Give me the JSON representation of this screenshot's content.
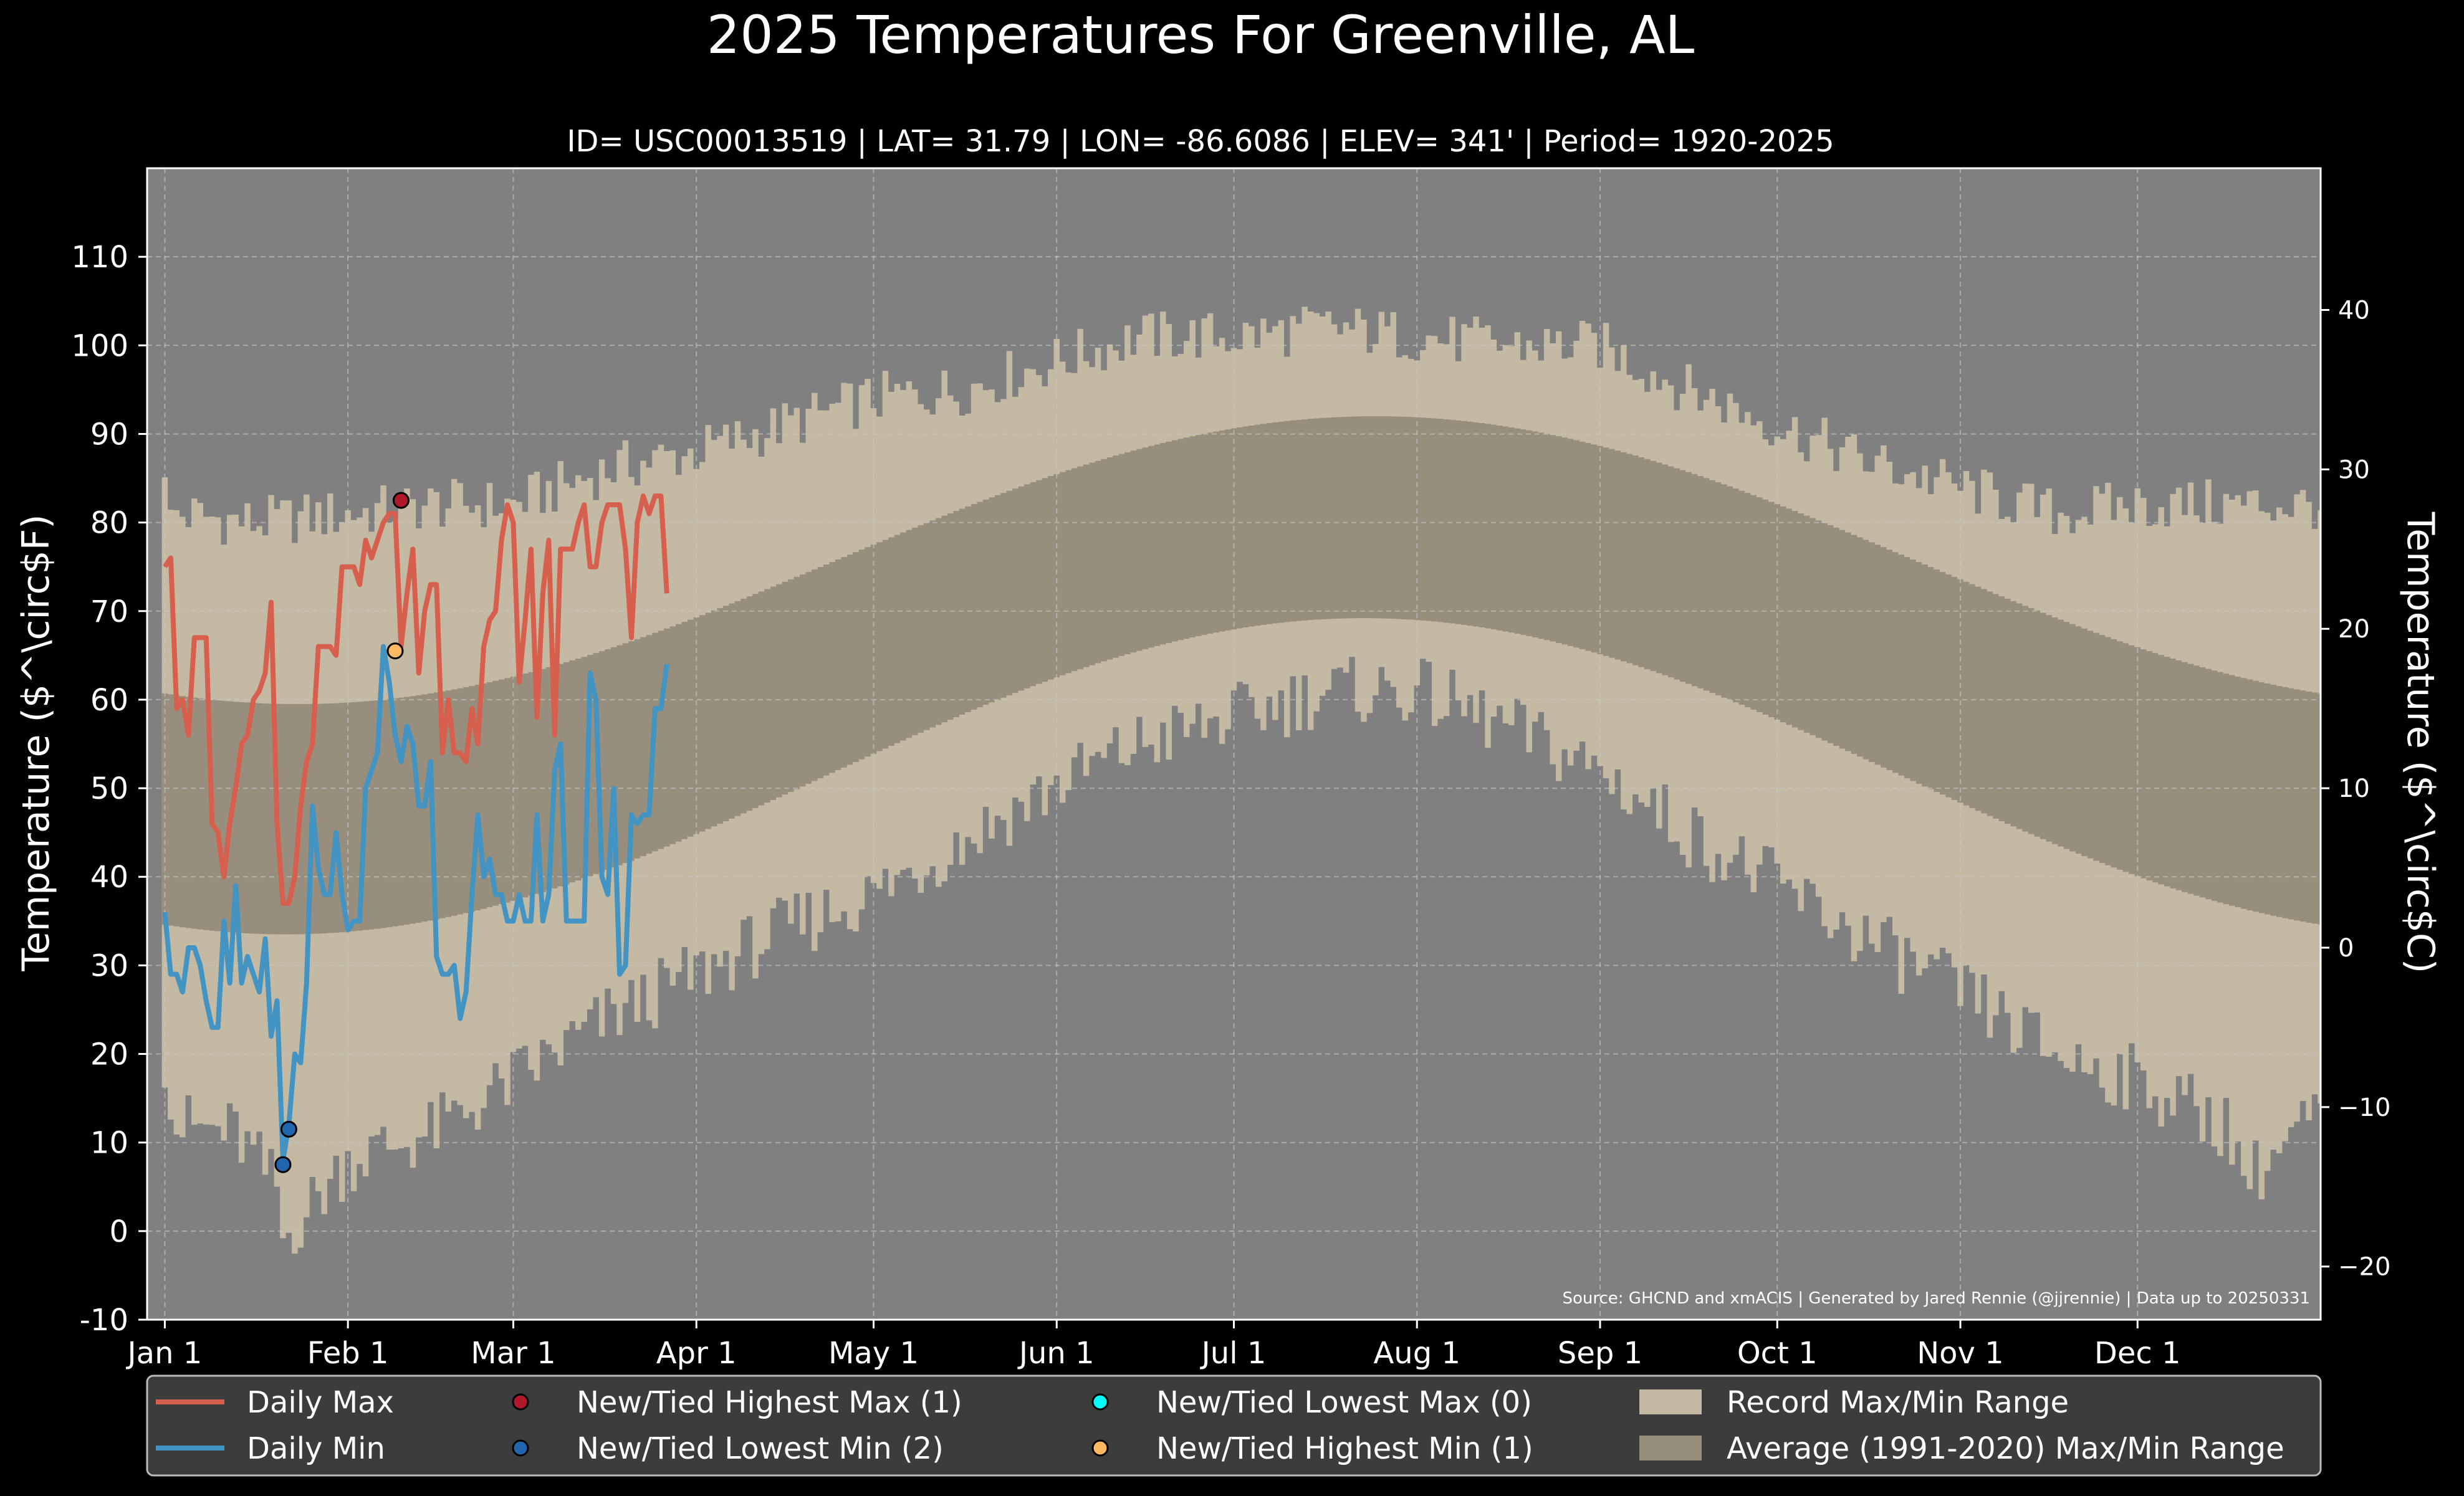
{
  "colors": {
    "background": "#000000",
    "plot_bg": "#808080",
    "record_range": "#c4baa4",
    "average_range": "#978e7e",
    "daily_max": "#d6604d",
    "daily_min": "#4393c3",
    "new_high_max": "#b2182b",
    "new_low_min": "#2166ac",
    "new_low_max": "#00ffff",
    "new_high_min": "#fdb863",
    "text": "#ffffff",
    "grid": "#c8c8c8",
    "legend_bg": "#3c3c3c"
  },
  "chart_data": {
    "type": "line",
    "title": "2025 Temperatures For Greenville, AL",
    "subtitle": "ID= USC00013519 | LAT= 31.79 | LON= -86.6086 | ELEV= 341' | Period= 1920-2025",
    "ylabel_left": "Temperature ($^\\circ$F)",
    "ylabel_right": "Temperature ($^\\circ$C)",
    "ylim": [
      -10,
      120
    ],
    "xlim_days": [
      -3,
      365
    ],
    "y_ticks_left": [
      "-10",
      "0",
      "10",
      "20",
      "30",
      "40",
      "50",
      "60",
      "70",
      "80",
      "90",
      "100",
      "110"
    ],
    "y_ticks_right": [
      "−20",
      "−10",
      "0",
      "10",
      "20",
      "30",
      "40"
    ],
    "x_ticks": [
      "Jan 1",
      "Feb 1",
      "Mar 1",
      "Apr 1",
      "May 1",
      "Jun 1",
      "Jul 1",
      "Aug 1",
      "Sep 1",
      "Oct 1",
      "Nov 1",
      "Dec 1"
    ],
    "grid": true,
    "source": "Source: GHCND and xmACIS | Generated by Jared Rennie (@jjrennie) | Data up to 20250331",
    "average_max_min": {
      "max_low": 59.5,
      "max_low_day": 20,
      "max_high": 92,
      "max_high_day": 205,
      "min_low": 33.5,
      "min_low_day": 20,
      "min_high": 69.2,
      "min_high_day": 203
    },
    "record_max_anchor_days": [
      0,
      1,
      2,
      15,
      31,
      45,
      59,
      75,
      90,
      105,
      120,
      135,
      150,
      165,
      181,
      197,
      212,
      227,
      243,
      258,
      273,
      288,
      304,
      320,
      334,
      349,
      364
    ],
    "record_max_anchor_values": [
      87,
      80,
      81,
      80,
      81,
      82,
      82,
      86,
      88,
      91,
      94,
      95,
      98,
      101,
      101,
      102,
      101,
      100,
      100,
      95,
      91,
      87,
      84,
      81,
      82,
      82,
      82
    ],
    "record_min_anchor_days": [
      0,
      2,
      12,
      19,
      20,
      31,
      45,
      59,
      75,
      90,
      105,
      120,
      135,
      150,
      165,
      181,
      197,
      212,
      227,
      243,
      258,
      273,
      288,
      304,
      320,
      334,
      349,
      353,
      364
    ],
    "record_min_anchor_values": [
      20,
      12,
      11,
      5,
      -1,
      8,
      11,
      17,
      24,
      29,
      34,
      38,
      44,
      50,
      55,
      58,
      61,
      61,
      57,
      52,
      45,
      39,
      33,
      27,
      20,
      17,
      12,
      6,
      13
    ],
    "series": [
      {
        "name": "Daily Max",
        "values": [
          75,
          76,
          59,
          60,
          56,
          67,
          67,
          67,
          46,
          45,
          40,
          46,
          50,
          55,
          56,
          60,
          61,
          63,
          71,
          46,
          37,
          37,
          40,
          48,
          53,
          55,
          66,
          66,
          66,
          65,
          75,
          75,
          75,
          73,
          78,
          76,
          78,
          80,
          81,
          81,
          66,
          72,
          77,
          63,
          70,
          73,
          73,
          54,
          60,
          54,
          54,
          53,
          59,
          55,
          66,
          69,
          70,
          78,
          82,
          80,
          62,
          69,
          77,
          58,
          72,
          78,
          56,
          77,
          77,
          77,
          80,
          82,
          75,
          75,
          80,
          82,
          82,
          82,
          77,
          67,
          80,
          83,
          81,
          83,
          83,
          72
        ]
      },
      {
        "name": "Daily Min",
        "values": [
          36,
          29,
          29,
          27,
          32,
          32,
          30,
          26,
          23,
          23,
          35,
          28,
          39,
          28,
          31,
          29,
          27,
          33,
          22,
          26,
          8,
          12,
          20,
          19,
          28,
          48,
          41,
          38,
          38,
          45,
          38,
          34,
          35,
          35,
          50,
          52,
          54,
          66,
          62,
          56,
          53,
          57,
          55,
          48,
          48,
          53,
          31,
          29,
          29,
          30,
          24,
          27,
          38,
          47,
          40,
          42,
          38,
          38,
          35,
          35,
          38,
          35,
          35,
          47,
          35,
          38,
          52,
          55,
          35,
          35,
          35,
          35,
          63,
          60,
          40,
          38,
          50,
          29,
          30,
          47,
          46,
          47,
          47,
          59,
          59,
          64
        ]
      }
    ],
    "markers": [
      {
        "series": "New/Tied Highest Max (1)",
        "day": 40,
        "value": 82.5
      },
      {
        "series": "New/Tied Highest Min (1)",
        "day": 39,
        "value": 65.5
      },
      {
        "series": "New/Tied Lowest Min (2)",
        "day": 21,
        "value": 11.5
      },
      {
        "series": "New/Tied Lowest Min (2)",
        "day": 20,
        "value": 7.5
      }
    ],
    "legend": {
      "placement": "bottom",
      "items": [
        {
          "label": "Daily Max",
          "kind": "line",
          "color": "#d6604d"
        },
        {
          "label": "Daily Min",
          "kind": "line",
          "color": "#4393c3"
        },
        {
          "label": "New/Tied Highest Max (1)",
          "kind": "marker",
          "color": "#b2182b"
        },
        {
          "label": "New/Tied Lowest Min (2)",
          "kind": "marker",
          "color": "#2166ac"
        },
        {
          "label": "New/Tied Lowest Max (0)",
          "kind": "marker",
          "color": "#00ffff"
        },
        {
          "label": "New/Tied Highest Min (1)",
          "kind": "marker",
          "color": "#fdb863"
        },
        {
          "label": "Record Max/Min Range",
          "kind": "patch",
          "color": "#c4baa4"
        },
        {
          "label": "Average (1991-2020) Max/Min Range",
          "kind": "patch",
          "color": "#978e7e"
        }
      ]
    }
  }
}
